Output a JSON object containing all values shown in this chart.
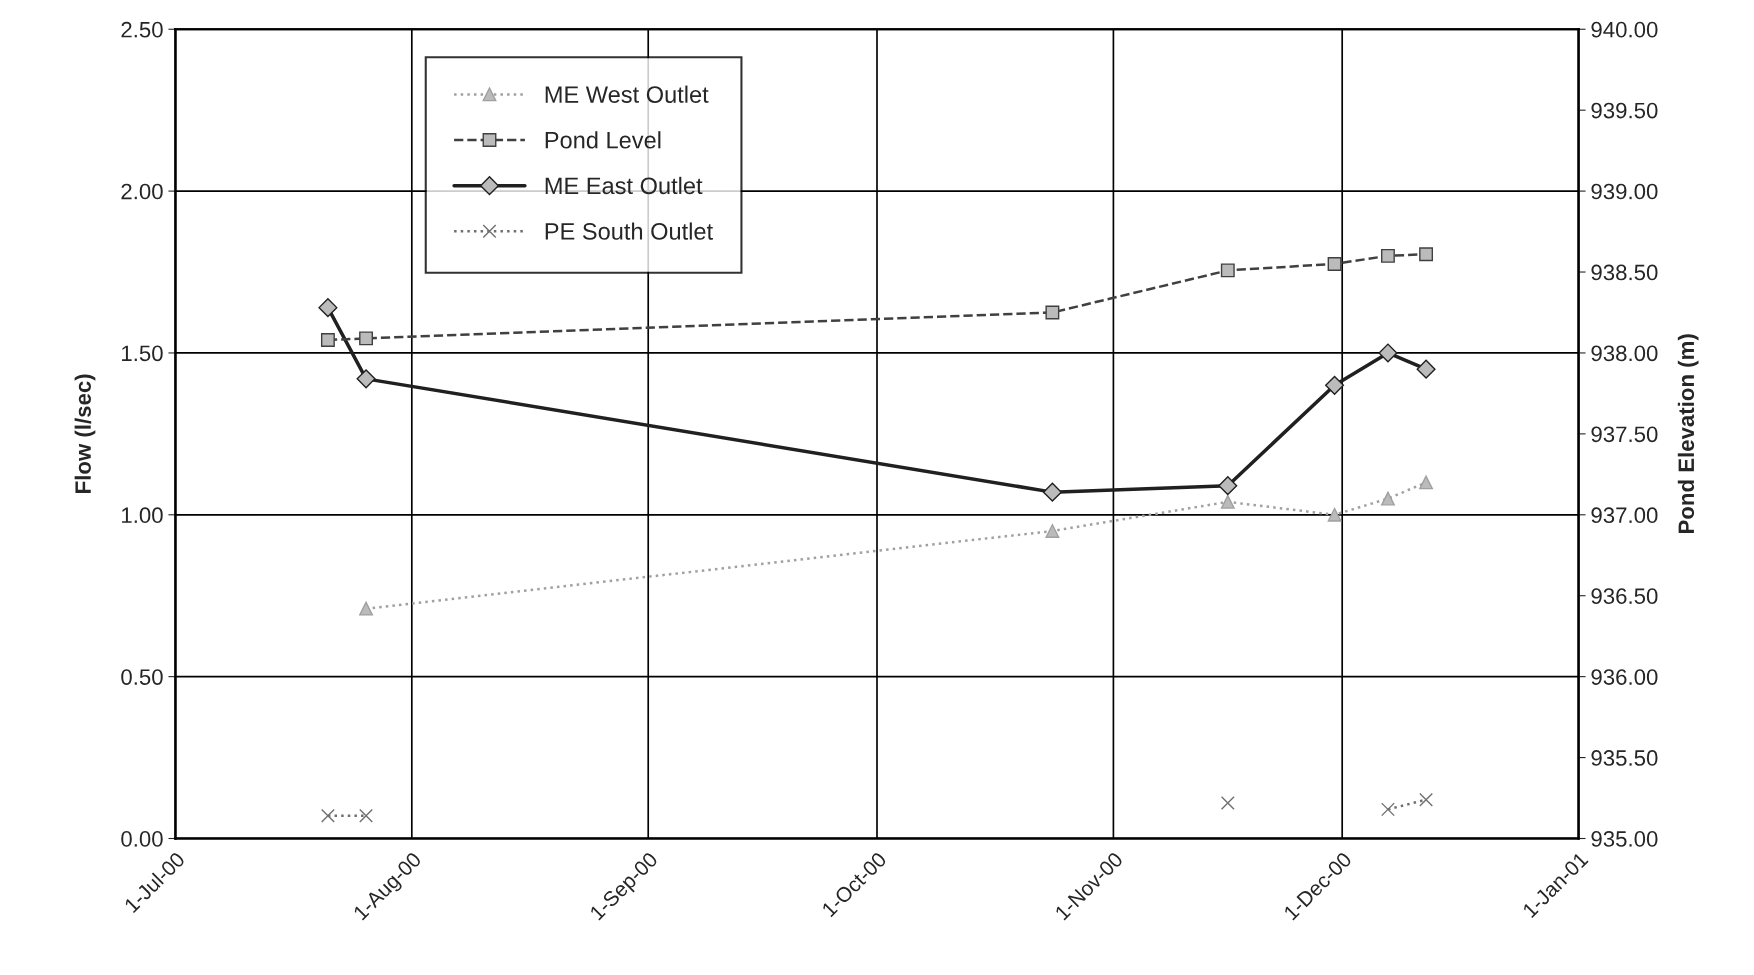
{
  "chart_data": {
    "type": "line",
    "x": [
      "2000-07-21",
      "2000-07-26",
      "2000-10-24",
      "2000-11-16",
      "2000-11-30",
      "2000-12-07",
      "2000-12-12"
    ],
    "series": [
      {
        "name": "ME West Outlet",
        "color": "#a0a0a0",
        "marker": "triangle",
        "line_style": "dotted",
        "values": [
          null,
          0.71,
          0.95,
          1.04,
          1.0,
          1.05,
          1.1
        ]
      },
      {
        "name": "Pond Level",
        "color": "#404040",
        "marker": "square",
        "line_style": "dashed",
        "axis": "y2",
        "values": [
          938.08,
          938.09,
          938.25,
          938.51,
          938.55,
          938.6,
          938.61
        ]
      },
      {
        "name": "ME East Outlet",
        "color": "#202020",
        "marker": "diamond",
        "line_style": "solid",
        "values": [
          1.64,
          1.42,
          1.07,
          1.09,
          1.4,
          1.5,
          1.45
        ]
      },
      {
        "name": "PE South Outlet",
        "color": "#707070",
        "marker": "cross",
        "line_style": "dotted",
        "values": [
          0.07,
          0.07,
          null,
          0.11,
          null,
          0.09,
          0.12
        ]
      }
    ],
    "ylabel": "Flow (l/sec)",
    "y2label": "Pond Elevation (m)",
    "xlim": [
      "2000-07-01",
      "2001-01-01"
    ],
    "xticks": [
      {
        "value": "2000-07-01",
        "label": "1-Jul-00"
      },
      {
        "value": "2000-08-01",
        "label": "1-Aug-00"
      },
      {
        "value": "2000-09-01",
        "label": "1-Sep-00"
      },
      {
        "value": "2000-10-01",
        "label": "1-Oct-00"
      },
      {
        "value": "2000-11-01",
        "label": "1-Nov-00"
      },
      {
        "value": "2000-12-01",
        "label": "1-Dec-00"
      },
      {
        "value": "2001-01-01",
        "label": "1-Jan-01"
      }
    ],
    "ylim": [
      0,
      2.5
    ],
    "yticks": [
      {
        "value": 0,
        "label": "0.00"
      },
      {
        "value": 0.5,
        "label": "0.50"
      },
      {
        "value": 1.0,
        "label": "1.00"
      },
      {
        "value": 1.5,
        "label": "1.50"
      },
      {
        "value": 2.0,
        "label": "2.00"
      },
      {
        "value": 2.5,
        "label": "2.50"
      }
    ],
    "y2lim": [
      935,
      940
    ],
    "y2ticks": [
      {
        "value": 935,
        "label": "935.00"
      },
      {
        "value": 935.5,
        "label": "935.50"
      },
      {
        "value": 936,
        "label": "936.00"
      },
      {
        "value": 936.5,
        "label": "936.50"
      },
      {
        "value": 937,
        "label": "937.00"
      },
      {
        "value": 937.5,
        "label": "937.50"
      },
      {
        "value": 938,
        "label": "938.00"
      },
      {
        "value": 938.5,
        "label": "938.50"
      },
      {
        "value": 939,
        "label": "939.00"
      },
      {
        "value": 939.5,
        "label": "939.50"
      },
      {
        "value": 940,
        "label": "940.00"
      }
    ],
    "grid": true,
    "legend": "top left"
  }
}
